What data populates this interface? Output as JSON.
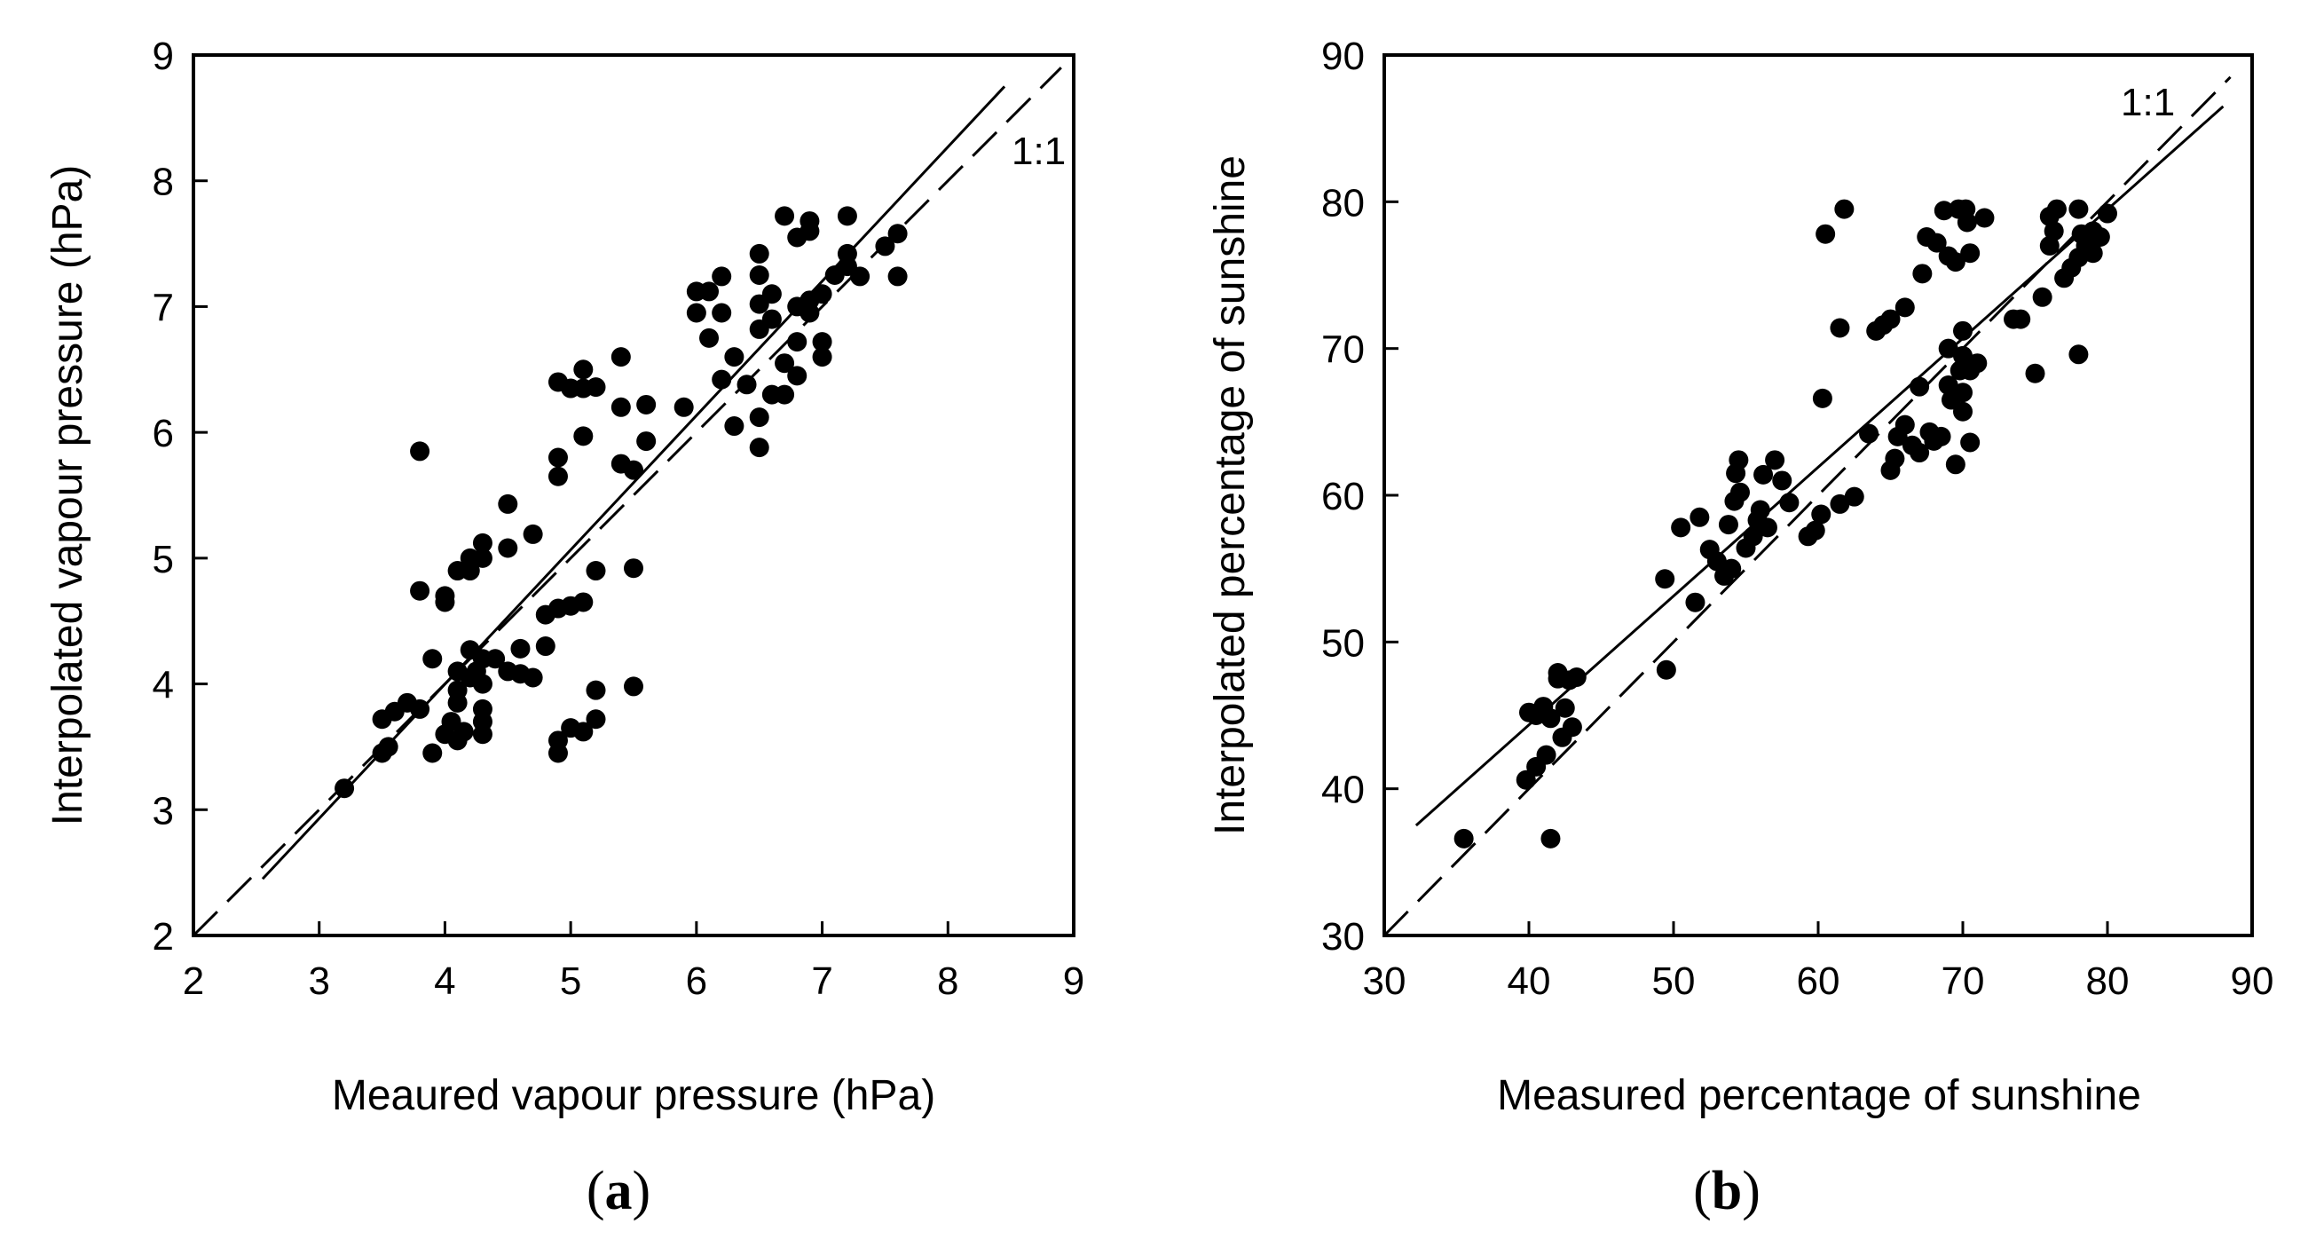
{
  "figure": {
    "panel_a_label_open": "(",
    "panel_a_label_letter": "a",
    "panel_a_label_close": ")",
    "panel_b_label_open": "(",
    "panel_b_label_letter": "b",
    "panel_b_label_close": ")"
  },
  "chart_data": [
    {
      "id": "a",
      "type": "scatter",
      "title": "",
      "xlabel": "Meaured vapour pressure (hPa)",
      "ylabel": "Interpolated vapour pressure (hPa)",
      "xlim": [
        2,
        9
      ],
      "ylim": [
        2,
        9
      ],
      "xticks": [
        2,
        3,
        4,
        5,
        6,
        7,
        8,
        9
      ],
      "yticks": [
        2,
        3,
        4,
        5,
        6,
        7,
        8,
        9
      ],
      "grid": false,
      "one_to_one_label": "1:1",
      "one_to_one_range": [
        2,
        8.9
      ],
      "fit_line": {
        "x": [
          2.55,
          8.45
        ],
        "y": [
          2.45,
          8.75
        ]
      },
      "points": [
        [
          3.2,
          3.17
        ],
        [
          3.5,
          3.45
        ],
        [
          3.5,
          3.72
        ],
        [
          3.55,
          3.5
        ],
        [
          3.6,
          3.78
        ],
        [
          3.7,
          3.85
        ],
        [
          3.8,
          3.8
        ],
        [
          3.8,
          4.74
        ],
        [
          3.8,
          5.85
        ],
        [
          3.9,
          3.45
        ],
        [
          3.9,
          4.2
        ],
        [
          4.0,
          3.6
        ],
        [
          4.0,
          4.65
        ],
        [
          4.0,
          4.7
        ],
        [
          4.05,
          3.7
        ],
        [
          4.1,
          3.55
        ],
        [
          4.1,
          3.85
        ],
        [
          4.1,
          3.95
        ],
        [
          4.1,
          4.1
        ],
        [
          4.1,
          4.9
        ],
        [
          4.15,
          3.62
        ],
        [
          4.2,
          4.05
        ],
        [
          4.2,
          4.27
        ],
        [
          4.2,
          4.9
        ],
        [
          4.2,
          5.0
        ],
        [
          4.25,
          4.1
        ],
        [
          4.3,
          3.6
        ],
        [
          4.3,
          3.7
        ],
        [
          4.3,
          3.8
        ],
        [
          4.3,
          4.0
        ],
        [
          4.3,
          4.2
        ],
        [
          4.3,
          5.0
        ],
        [
          4.3,
          5.12
        ],
        [
          4.4,
          4.2
        ],
        [
          4.5,
          4.1
        ],
        [
          4.5,
          5.08
        ],
        [
          4.5,
          5.43
        ],
        [
          4.6,
          4.08
        ],
        [
          4.6,
          4.28
        ],
        [
          4.7,
          4.05
        ],
        [
          4.7,
          5.19
        ],
        [
          4.8,
          4.3
        ],
        [
          4.8,
          4.55
        ],
        [
          4.9,
          3.45
        ],
        [
          4.9,
          3.55
        ],
        [
          4.9,
          4.6
        ],
        [
          4.9,
          5.65
        ],
        [
          4.9,
          5.8
        ],
        [
          4.9,
          6.4
        ],
        [
          5.0,
          3.65
        ],
        [
          5.0,
          4.62
        ],
        [
          5.0,
          6.35
        ],
        [
          5.1,
          3.62
        ],
        [
          5.1,
          4.65
        ],
        [
          5.1,
          5.97
        ],
        [
          5.1,
          6.35
        ],
        [
          5.1,
          6.5
        ],
        [
          5.2,
          3.72
        ],
        [
          5.2,
          3.95
        ],
        [
          5.2,
          4.9
        ],
        [
          5.2,
          6.36
        ],
        [
          5.4,
          5.75
        ],
        [
          5.4,
          6.2
        ],
        [
          5.4,
          6.6
        ],
        [
          5.5,
          3.98
        ],
        [
          5.5,
          4.92
        ],
        [
          5.5,
          5.7
        ],
        [
          5.6,
          5.93
        ],
        [
          5.6,
          6.22
        ],
        [
          5.9,
          6.2
        ],
        [
          6.0,
          6.95
        ],
        [
          6.0,
          7.12
        ],
        [
          6.1,
          6.75
        ],
        [
          6.1,
          7.12
        ],
        [
          6.2,
          6.42
        ],
        [
          6.2,
          6.95
        ],
        [
          6.2,
          7.24
        ],
        [
          6.3,
          6.05
        ],
        [
          6.3,
          6.6
        ],
        [
          6.4,
          6.38
        ],
        [
          6.5,
          5.88
        ],
        [
          6.5,
          6.12
        ],
        [
          6.5,
          6.82
        ],
        [
          6.5,
          7.02
        ],
        [
          6.5,
          7.25
        ],
        [
          6.5,
          7.42
        ],
        [
          6.6,
          6.3
        ],
        [
          6.6,
          6.9
        ],
        [
          6.6,
          7.1
        ],
        [
          6.7,
          6.3
        ],
        [
          6.7,
          6.55
        ],
        [
          6.7,
          7.72
        ],
        [
          6.8,
          6.45
        ],
        [
          6.8,
          6.72
        ],
        [
          6.8,
          7.0
        ],
        [
          6.8,
          7.55
        ],
        [
          6.9,
          6.95
        ],
        [
          6.9,
          7.05
        ],
        [
          6.9,
          7.6
        ],
        [
          6.9,
          7.68
        ],
        [
          7.0,
          6.6
        ],
        [
          7.0,
          6.72
        ],
        [
          7.0,
          7.1
        ],
        [
          7.1,
          7.25
        ],
        [
          7.2,
          7.32
        ],
        [
          7.2,
          7.42
        ],
        [
          7.2,
          7.72
        ],
        [
          7.3,
          7.24
        ],
        [
          7.5,
          7.48
        ],
        [
          7.6,
          7.24
        ],
        [
          7.6,
          7.58
        ]
      ]
    },
    {
      "id": "b",
      "type": "scatter",
      "title": "",
      "xlabel": "Measured percentage of sunshine",
      "ylabel": "Interpolated percentage of sunshine",
      "xlim": [
        30,
        90
      ],
      "ylim": [
        30,
        90
      ],
      "xticks": [
        30,
        40,
        50,
        60,
        70,
        80,
        90
      ],
      "yticks": [
        30,
        40,
        50,
        60,
        70,
        80,
        90
      ],
      "grid": false,
      "one_to_one_label": "1:1",
      "one_to_one_range": [
        30,
        88.5
      ],
      "fit_line": {
        "x": [
          32.2,
          88.0
        ],
        "y": [
          37.5,
          86.5
        ]
      },
      "points": [
        [
          35.5,
          36.6
        ],
        [
          39.8,
          40.6
        ],
        [
          40.0,
          45.2
        ],
        [
          40.5,
          41.5
        ],
        [
          40.5,
          45.0
        ],
        [
          41.0,
          45.6
        ],
        [
          41.2,
          42.3
        ],
        [
          41.5,
          36.6
        ],
        [
          41.5,
          44.8
        ],
        [
          42.0,
          47.5
        ],
        [
          42.0,
          47.9
        ],
        [
          42.3,
          43.5
        ],
        [
          42.5,
          45.5
        ],
        [
          42.8,
          47.4
        ],
        [
          43.0,
          44.2
        ],
        [
          43.3,
          47.6
        ],
        [
          49.4,
          54.3
        ],
        [
          49.5,
          48.1
        ],
        [
          50.5,
          57.8
        ],
        [
          51.5,
          52.7
        ],
        [
          51.8,
          58.5
        ],
        [
          52.5,
          56.3
        ],
        [
          53.0,
          55.5
        ],
        [
          53.5,
          54.5
        ],
        [
          53.8,
          58.0
        ],
        [
          54.0,
          55.0
        ],
        [
          54.2,
          59.6
        ],
        [
          54.3,
          61.5
        ],
        [
          54.5,
          62.4
        ],
        [
          54.6,
          60.2
        ],
        [
          55.0,
          56.4
        ],
        [
          55.5,
          57.2
        ],
        [
          55.8,
          58.3
        ],
        [
          56.0,
          59.0
        ],
        [
          56.2,
          61.4
        ],
        [
          56.5,
          57.8
        ],
        [
          57.0,
          62.4
        ],
        [
          57.5,
          61.0
        ],
        [
          58.0,
          59.5
        ],
        [
          59.3,
          57.2
        ],
        [
          59.8,
          57.6
        ],
        [
          60.2,
          58.7
        ],
        [
          60.3,
          66.6
        ],
        [
          60.5,
          77.8
        ],
        [
          61.5,
          71.4
        ],
        [
          61.5,
          59.4
        ],
        [
          61.8,
          79.5
        ],
        [
          62.5,
          59.9
        ],
        [
          63.5,
          64.2
        ],
        [
          64.0,
          71.2
        ],
        [
          64.5,
          71.6
        ],
        [
          65.0,
          61.7
        ],
        [
          65.0,
          72.0
        ],
        [
          65.3,
          62.5
        ],
        [
          65.5,
          64.0
        ],
        [
          66.0,
          72.8
        ],
        [
          66.0,
          64.8
        ],
        [
          66.5,
          63.4
        ],
        [
          67.0,
          67.4
        ],
        [
          67.0,
          62.9
        ],
        [
          67.2,
          75.1
        ],
        [
          67.5,
          77.6
        ],
        [
          67.7,
          64.3
        ],
        [
          68.0,
          63.7
        ],
        [
          68.2,
          77.2
        ],
        [
          68.5,
          64.0
        ],
        [
          68.7,
          79.4
        ],
        [
          69.0,
          76.3
        ],
        [
          69.0,
          67.5
        ],
        [
          69.0,
          70.0
        ],
        [
          69.2,
          66.5
        ],
        [
          69.5,
          62.1
        ],
        [
          69.5,
          75.9
        ],
        [
          69.7,
          79.5
        ],
        [
          69.8,
          68.5
        ],
        [
          70.0,
          67.0
        ],
        [
          70.0,
          69.5
        ],
        [
          70.0,
          71.2
        ],
        [
          70.0,
          65.7
        ],
        [
          70.2,
          79.5
        ],
        [
          70.3,
          78.6
        ],
        [
          70.5,
          76.5
        ],
        [
          70.5,
          68.5
        ],
        [
          70.5,
          63.6
        ],
        [
          71.0,
          69.0
        ],
        [
          71.5,
          78.9
        ],
        [
          73.5,
          72.0
        ],
        [
          74.0,
          72.0
        ],
        [
          75.0,
          68.3
        ],
        [
          75.5,
          73.5
        ],
        [
          76.0,
          77.0
        ],
        [
          76.0,
          79.0
        ],
        [
          76.3,
          78.0
        ],
        [
          76.5,
          79.5
        ],
        [
          77.0,
          74.8
        ],
        [
          77.5,
          75.5
        ],
        [
          78.0,
          69.6
        ],
        [
          78.0,
          76.2
        ],
        [
          78.0,
          79.5
        ],
        [
          78.2,
          77.8
        ],
        [
          78.5,
          77.0
        ],
        [
          79.0,
          76.5
        ],
        [
          79.0,
          77.5
        ],
        [
          79.0,
          78.0
        ],
        [
          79.5,
          77.6
        ],
        [
          80.0,
          79.2
        ]
      ]
    }
  ]
}
